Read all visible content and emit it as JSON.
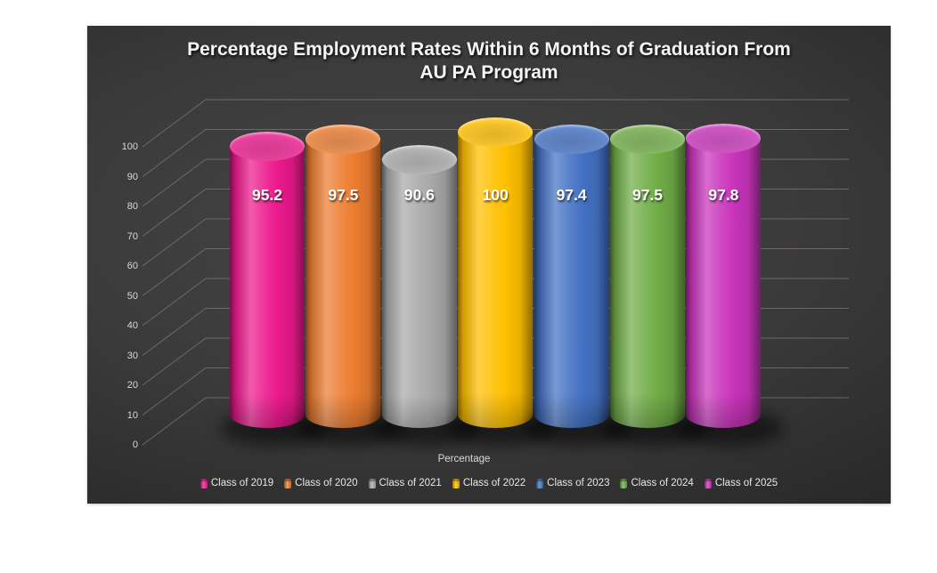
{
  "title": {
    "line1": "Percentage Employment Rates Within 6 Months of Graduation From",
    "line2": "AU PA Program"
  },
  "chart_data": {
    "type": "bar",
    "style": "3d-cylinder",
    "categories": [
      "Class of 2019",
      "Class of 2020",
      "Class of 2021",
      "Class of 2022",
      "Class of 2023",
      "Class of 2024",
      "Class of 2025"
    ],
    "values": [
      95.2,
      97.5,
      90.6,
      100,
      97.4,
      97.5,
      97.8
    ],
    "data_labels": [
      "95.2",
      "97.5",
      "90.6",
      "100",
      "97.4",
      "97.5",
      "97.8"
    ],
    "series_colors": [
      "#EC1A8D",
      "#ED7D31",
      "#A9A9A9",
      "#FFC000",
      "#4472C4",
      "#70AD47",
      "#C934BB"
    ],
    "xlabel": "Percentage",
    "ylabel": "",
    "ylim": [
      0,
      100
    ],
    "ytick_step": 10,
    "ytick_labels": [
      "0",
      "10",
      "20",
      "30",
      "40",
      "50",
      "60",
      "70",
      "80",
      "90",
      "100"
    ],
    "grid": true,
    "legend_position": "bottom",
    "background": "#333333",
    "gridline_color": "#7F7F7F",
    "text_color": "#D9D9D9",
    "title_color": "#F2F2F2",
    "label_color": "#FFFFFF"
  }
}
